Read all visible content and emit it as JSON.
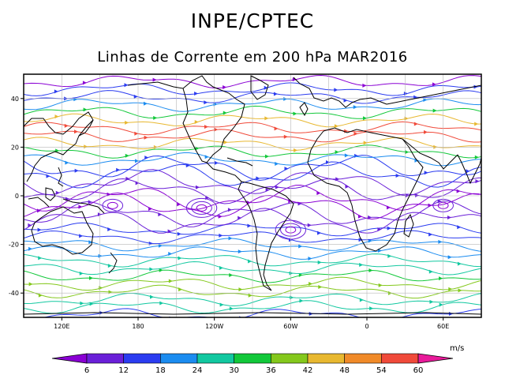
{
  "header": {
    "title": "INPE/CPTEC",
    "subtitle": "Linhas de Corrente em 200 hPa MAR2016"
  },
  "map": {
    "lon_range": [
      90,
      450
    ],
    "lat_range": [
      -50,
      50
    ],
    "lon_ticks": [
      {
        "lon": 120,
        "label": "120E"
      },
      {
        "lon": 180,
        "label": "180"
      },
      {
        "lon": 240,
        "label": "120W"
      },
      {
        "lon": 300,
        "label": "60W"
      },
      {
        "lon": 360,
        "label": "0"
      },
      {
        "lon": 420,
        "label": "60E"
      }
    ],
    "lat_ticks": [
      {
        "lat": 40,
        "label": "40"
      },
      {
        "lat": 20,
        "label": "20"
      },
      {
        "lat": 0,
        "label": "0"
      },
      {
        "lat": -20,
        "label": "-20"
      },
      {
        "lat": -40,
        "label": "-40"
      }
    ]
  },
  "colorbar": {
    "units": "m/s",
    "labels": [
      "6",
      "12",
      "18",
      "24",
      "30",
      "36",
      "42",
      "48",
      "54",
      "60"
    ],
    "colors": [
      "#8a00d4",
      "#6a1fd8",
      "#2b3cf0",
      "#1b8cf0",
      "#12c8a0",
      "#12c83a",
      "#84c81c",
      "#e8b830",
      "#f08a28",
      "#f04a3a",
      "#e81a9a"
    ]
  }
}
